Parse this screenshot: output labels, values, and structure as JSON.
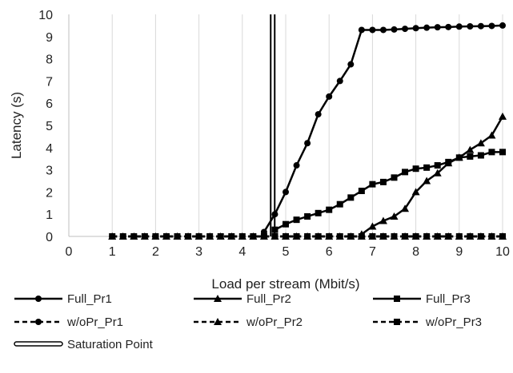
{
  "chart_data": {
    "type": "line",
    "xlabel": "Load per stream (Mbit/s)",
    "ylabel": "Latency (s)",
    "xlim": [
      0,
      10
    ],
    "ylim": [
      0,
      10
    ],
    "x_ticks": [
      "0",
      "1",
      "2",
      "3",
      "4",
      "5",
      "6",
      "7",
      "8",
      "9",
      "10"
    ],
    "y_ticks": [
      "0",
      "1",
      "2",
      "3",
      "4",
      "5",
      "6",
      "7",
      "8",
      "9",
      "10"
    ],
    "grid": "vertical",
    "legend_position": "bottom",
    "series": [
      {
        "name": "Full_Pr1",
        "marker": "circle",
        "dash": "solid",
        "x": [
          4.5,
          4.75,
          5,
          5.25,
          5.5,
          5.75,
          6,
          6.25,
          6.5,
          6.75,
          7,
          7.25,
          7.5,
          7.75,
          8,
          8.25,
          8.5,
          8.75,
          9,
          9.25,
          9.5,
          9.75,
          10
        ],
        "y": [
          0.2,
          1.0,
          2.0,
          3.2,
          4.2,
          5.5,
          6.3,
          7.0,
          7.75,
          9.3,
          9.3,
          9.3,
          9.32,
          9.35,
          9.38,
          9.4,
          9.42,
          9.43,
          9.45,
          9.46,
          9.47,
          9.48,
          9.5
        ]
      },
      {
        "name": "Full_Pr2",
        "marker": "triangle",
        "dash": "solid",
        "x": [
          6.75,
          7,
          7.25,
          7.5,
          7.75,
          8,
          8.25,
          8.5,
          8.75,
          9,
          9.25,
          9.5,
          9.75,
          10
        ],
        "y": [
          0.1,
          0.45,
          0.7,
          0.9,
          1.25,
          2.0,
          2.5,
          2.85,
          3.3,
          3.55,
          3.9,
          4.2,
          4.55,
          5.4
        ]
      },
      {
        "name": "Full_Pr3",
        "marker": "square",
        "dash": "solid",
        "x": [
          4.75,
          5,
          5.25,
          5.5,
          5.75,
          6,
          6.25,
          6.5,
          6.75,
          7,
          7.25,
          7.5,
          7.75,
          8,
          8.25,
          8.5,
          8.75,
          9,
          9.25,
          9.5,
          9.75,
          10
        ],
        "y": [
          0.3,
          0.55,
          0.75,
          0.9,
          1.05,
          1.2,
          1.45,
          1.75,
          2.05,
          2.35,
          2.45,
          2.65,
          2.9,
          3.05,
          3.1,
          3.2,
          3.35,
          3.55,
          3.6,
          3.65,
          3.8,
          3.8
        ]
      },
      {
        "name": "w/oPr_Pr1",
        "marker": "circle",
        "dash": "dashed",
        "x": [
          1,
          1.25,
          1.5,
          1.75,
          2,
          2.25,
          2.5,
          2.75,
          3,
          3.25,
          3.5,
          3.75,
          4,
          4.25,
          4.5,
          4.75,
          5,
          5.25,
          5.5,
          5.75,
          6,
          6.25,
          6.5,
          6.75,
          7,
          7.25,
          7.5,
          7.75,
          8,
          8.25,
          8.5,
          8.75,
          9,
          9.25,
          9.5,
          9.75,
          10
        ],
        "y": [
          0,
          0,
          0,
          0,
          0,
          0,
          0,
          0,
          0,
          0,
          0,
          0,
          0,
          0,
          0,
          0,
          0,
          0,
          0,
          0,
          0,
          0,
          0,
          0,
          0,
          0,
          0,
          0,
          0,
          0,
          0,
          0,
          0,
          0,
          0,
          0,
          0
        ]
      },
      {
        "name": "w/oPr_Pr2",
        "marker": "triangle",
        "dash": "dashed",
        "x": [
          1,
          1.25,
          1.5,
          1.75,
          2,
          2.25,
          2.5,
          2.75,
          3,
          3.25,
          3.5,
          3.75,
          4,
          4.25,
          4.5,
          4.75,
          5,
          5.25,
          5.5,
          5.75,
          6,
          6.25,
          6.5,
          6.75,
          7,
          7.25,
          7.5,
          7.75,
          8,
          8.25,
          8.5,
          8.75,
          9,
          9.25,
          9.5,
          9.75,
          10
        ],
        "y": [
          0,
          0,
          0,
          0,
          0,
          0,
          0,
          0,
          0,
          0,
          0,
          0,
          0,
          0,
          0,
          0,
          0,
          0,
          0,
          0,
          0,
          0,
          0,
          0,
          0,
          0,
          0,
          0,
          0,
          0,
          0,
          0,
          0,
          0,
          0,
          0,
          0
        ]
      },
      {
        "name": "w/oPr_Pr3",
        "marker": "square",
        "dash": "dashed",
        "x": [
          1,
          1.25,
          1.5,
          1.75,
          2,
          2.25,
          2.5,
          2.75,
          3,
          3.25,
          3.5,
          3.75,
          4,
          4.25,
          4.5,
          4.75,
          5,
          5.25,
          5.5,
          5.75,
          6,
          6.25,
          6.5,
          6.75,
          7,
          7.25,
          7.5,
          7.75,
          8,
          8.25,
          8.5,
          8.75,
          9,
          9.25,
          9.5,
          9.75,
          10
        ],
        "y": [
          0,
          0,
          0,
          0,
          0,
          0,
          0,
          0,
          0,
          0,
          0,
          0,
          0,
          0,
          0,
          0,
          0,
          0,
          0,
          0,
          0,
          0,
          0,
          0,
          0,
          0,
          0,
          0,
          0,
          0,
          0,
          0,
          0,
          0,
          0,
          0,
          0
        ]
      }
    ],
    "reference_line": {
      "name": "Saturation Point",
      "x": 4.7,
      "style": "double"
    }
  }
}
